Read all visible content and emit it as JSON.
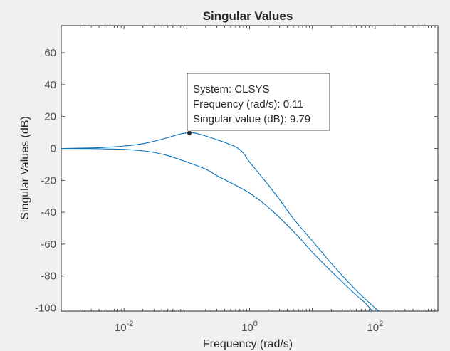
{
  "chart_data": {
    "type": "line",
    "title": "Singular Values",
    "xlabel": "Frequency (rad/s)",
    "ylabel": "Singular Values (dB)",
    "x_scale": "log",
    "xlim": [
      0.001,
      1000
    ],
    "ylim": [
      -102,
      77
    ],
    "grid": false,
    "line_color": "#0072bd",
    "background_color": "#ffffff",
    "figure_color": "#f0f0f0",
    "x_ticks": [
      {
        "value": 0.01,
        "base": "10",
        "exp": "-2"
      },
      {
        "value": 1,
        "base": "10",
        "exp": "0"
      },
      {
        "value": 100,
        "base": "10",
        "exp": "2"
      }
    ],
    "y_ticks": [
      -100,
      -80,
      -60,
      -40,
      -20,
      0,
      20,
      40,
      60
    ],
    "series": [
      {
        "x": [
          0.001,
          0.003,
          0.005,
          0.01,
          0.02,
          0.03,
          0.05,
          0.07,
          0.09,
          0.11,
          0.14,
          0.2,
          0.3,
          0.4,
          0.5,
          0.6,
          0.7,
          0.8,
          1,
          1.5,
          2,
          3,
          5,
          10,
          20,
          50,
          100,
          150,
          230
        ],
        "y": [
          0,
          0.3,
          0.7,
          1.5,
          3,
          4.5,
          6.8,
          8.5,
          9.5,
          9.79,
          9.5,
          7.8,
          5.5,
          3.8,
          2.3,
          1,
          -0.8,
          -3,
          -8.5,
          -17,
          -23,
          -32,
          -44,
          -58,
          -72,
          -89,
          -100,
          -106,
          -113
        ]
      },
      {
        "x": [
          0.001,
          0.003,
          0.005,
          0.01,
          0.02,
          0.03,
          0.05,
          0.1,
          0.2,
          0.3,
          0.5,
          1,
          2,
          5,
          10,
          20,
          50,
          70,
          100,
          150
        ],
        "y": [
          0,
          -0.1,
          -0.3,
          -0.6,
          -1.5,
          -2.5,
          -4.5,
          -8.5,
          -13,
          -17,
          -21.5,
          -28,
          -37,
          -52,
          -65,
          -77,
          -92,
          -97,
          -104,
          -110
        ]
      }
    ],
    "datatip": {
      "lines": [
        "System: CLSYS",
        "Frequency (rad/s): 0.11",
        "Singular value (dB): 9.79"
      ],
      "x": 0.11,
      "y": 9.79
    }
  }
}
